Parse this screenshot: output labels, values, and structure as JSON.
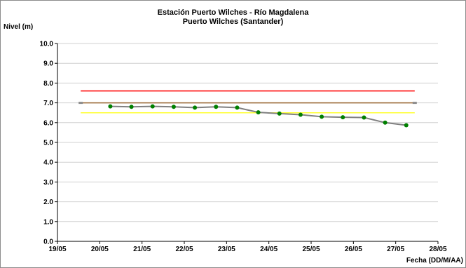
{
  "chart_data": {
    "type": "line",
    "title": "Estación Puerto Wilches - Río Magdalena",
    "subtitle": "Puerto Wilches (Santander)",
    "ylabel": "Nivel (m)",
    "xlabel": "Fecha (DD/M/AA)",
    "ylim": [
      0,
      10
    ],
    "xlim": [
      0,
      9
    ],
    "yticks": [
      "0.0",
      "1.0",
      "2.0",
      "3.0",
      "4.0",
      "5.0",
      "6.0",
      "7.0",
      "8.0",
      "9.0",
      "10.0"
    ],
    "xticks": [
      "19/05",
      "20/05",
      "21/05",
      "22/05",
      "23/05",
      "24/05",
      "25/05",
      "26/05",
      "27/05",
      "28/05"
    ],
    "grid": true,
    "thresholds": [
      {
        "value": 7.6,
        "color": "#ff0000",
        "x": [
          0.55,
          8.45
        ]
      },
      {
        "value": 7.0,
        "color": "#996633",
        "x": [
          0.55,
          8.45
        ]
      },
      {
        "value": 6.5,
        "color": "#ffff33",
        "x": [
          0.55,
          8.45
        ]
      }
    ],
    "series": [
      {
        "x": [
          1.25,
          1.75,
          2.25,
          2.75,
          3.25,
          3.75,
          4.25,
          4.75,
          5.25,
          5.75,
          6.25,
          6.75,
          7.25,
          7.75,
          8.25
        ],
        "y": [
          6.82,
          6.8,
          6.82,
          6.8,
          6.76,
          6.8,
          6.76,
          6.52,
          6.46,
          6.4,
          6.3,
          6.27,
          6.26,
          6.0,
          5.87
        ],
        "line_color": "#808080",
        "marker_color": "#008000"
      }
    ]
  }
}
